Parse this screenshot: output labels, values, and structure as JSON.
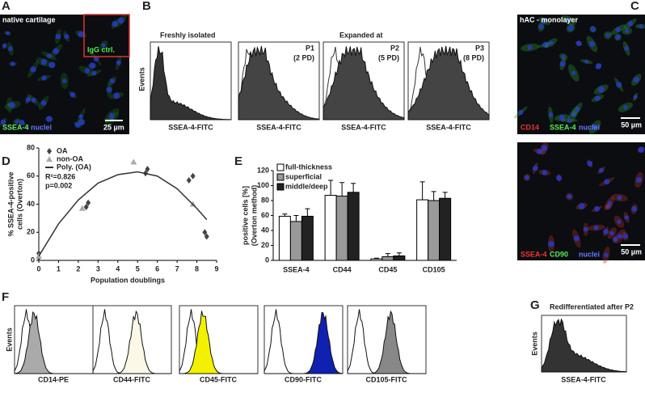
{
  "panels": {
    "A": {
      "letter": "A",
      "label": "native cartilage",
      "inset": "IgG ctrl.",
      "stain1": "SSEA-4",
      "stain2": "nuclei",
      "scale": "25 µm"
    },
    "B": {
      "letter": "B",
      "left_title": "Freshly isolated",
      "right_title": "Expanded at",
      "y_label": "Events",
      "x_labels": [
        "SSEA-4-FITC",
        "SSEA-4-FITC",
        "SSEA-4-FITC",
        "SSEA-4-FITC"
      ],
      "passages": [
        {
          "p": "P1",
          "pd": "(2 PD)"
        },
        {
          "p": "P2",
          "pd": "(5 PD)"
        },
        {
          "p": "P3",
          "pd": "(8 PD)"
        }
      ]
    },
    "C": {
      "letter": "C",
      "label": "hAC - monolayer",
      "top": {
        "s1": "CD14",
        "s2": "SSEA-4",
        "s3": "nuclei",
        "scale": "50 µm"
      },
      "bottom": {
        "s1": "SSEA-4",
        "s2": "CD90",
        "s3": "nuclei",
        "scale": "50 µm"
      }
    },
    "D": {
      "letter": "D"
    },
    "E": {
      "letter": "E"
    },
    "F": {
      "letter": "F",
      "y_label": "Events",
      "x_labels": [
        "CD14-PE",
        "CD44-FITC",
        "CD45-FITC",
        "CD90-FITC",
        "CD105-FITC"
      ]
    },
    "G": {
      "letter": "G",
      "title": "Redifferentiated after P2",
      "y_label": "Events",
      "x_label": "SSEA-4-FITC"
    }
  },
  "chart_data": [
    {
      "type": "scatter",
      "y_label": [
        "% SSEA-4-positive",
        "cells (Overton)"
      ],
      "x_label": "Population doublings",
      "xlim": [
        0,
        9
      ],
      "xticks": [
        0,
        1,
        2,
        3,
        4,
        5,
        6,
        7,
        8,
        9
      ],
      "ylim": [
        0,
        80
      ],
      "yticks": [
        0,
        20,
        40,
        60,
        80
      ],
      "annotations": [
        "R²=0.826",
        "p=0.002"
      ],
      "series": [
        {
          "name": "OA",
          "color": "#444444",
          "marker": "diamond",
          "x": [
            0,
            0,
            2.4,
            2.5,
            5.4,
            5.5,
            7.6,
            7.8,
            8.4,
            8.5
          ],
          "values": [
            2,
            5,
            38,
            41,
            62,
            65,
            57,
            60,
            20,
            17
          ]
        },
        {
          "name": "non-OA",
          "color": "#aaaaaa",
          "marker": "triangle",
          "x": [
            0,
            2.2,
            4.8,
            7.8
          ],
          "values": [
            3,
            37,
            70,
            40
          ]
        },
        {
          "name": "Poly. (OA)",
          "color": "#333333",
          "marker": "line",
          "x": [
            0,
            1,
            2,
            3,
            4,
            5,
            6,
            7,
            8,
            8.5
          ],
          "values": [
            3,
            26,
            43,
            55,
            61,
            63,
            60,
            51,
            37,
            29
          ]
        }
      ]
    },
    {
      "type": "bar",
      "y_label": [
        "positive cells [%]",
        "(Overton method)"
      ],
      "categories": [
        "SSEA-4",
        "CD44",
        "CD45",
        "CD105"
      ],
      "ylim": [
        0,
        120
      ],
      "yticks": [
        0,
        20,
        40,
        60,
        80,
        100,
        120
      ],
      "series": [
        {
          "name": "full-thickness",
          "color": "#ffffff",
          "values": [
            59,
            87,
            2,
            81
          ],
          "errors": [
            3,
            20,
            1,
            24
          ]
        },
        {
          "name": "superficial",
          "color": "#999999",
          "values": [
            52,
            86,
            5,
            80
          ],
          "errors": [
            8,
            18,
            4,
            12
          ]
        },
        {
          "name": "middle/deep",
          "color": "#222222",
          "values": [
            59,
            91,
            6,
            83
          ],
          "errors": [
            10,
            12,
            4,
            8
          ]
        }
      ]
    }
  ]
}
